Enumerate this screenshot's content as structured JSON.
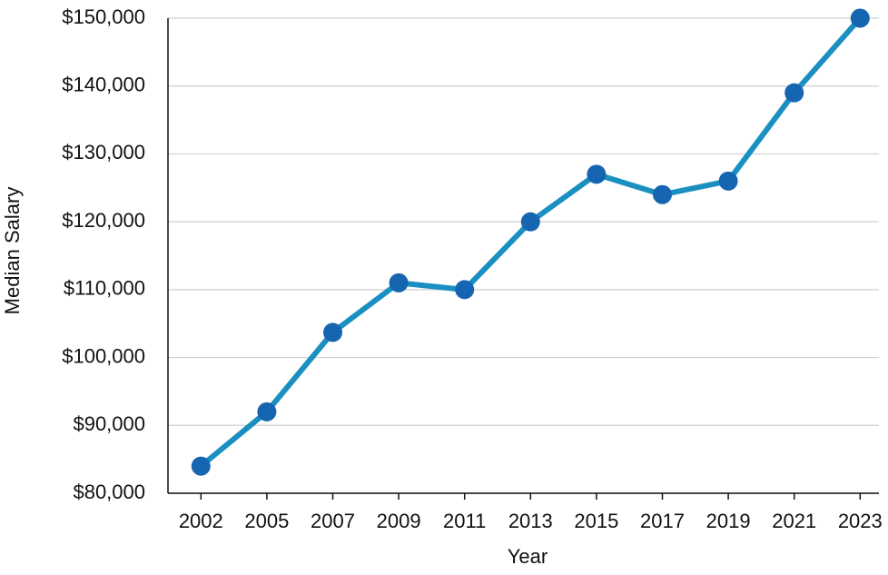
{
  "chart_data": {
    "type": "line",
    "x_label": "Year",
    "y_label": "Median Salary",
    "categories": [
      "2002",
      "2005",
      "2007",
      "2009",
      "2011",
      "2013",
      "2015",
      "2017",
      "2019",
      "2021",
      "2023"
    ],
    "series": [
      {
        "name": "Median Salary",
        "color": "#1a8fc1",
        "marker_color": "#1565b0",
        "values": [
          84000,
          92000,
          103700,
          111000,
          110000,
          120000,
          127000,
          124000,
          126000,
          139000,
          150000
        ]
      }
    ],
    "ylim": [
      80000,
      150000
    ],
    "yticks": [
      {
        "value": 80000,
        "label": "$80,000"
      },
      {
        "value": 90000,
        "label": "$90,000"
      },
      {
        "value": 100000,
        "label": "$100,000"
      },
      {
        "value": 110000,
        "label": "$110,000"
      },
      {
        "value": 120000,
        "label": "$120,000"
      },
      {
        "value": 130000,
        "label": "$130,000"
      },
      {
        "value": 140000,
        "label": "$140,000"
      },
      {
        "value": 150000,
        "label": "$150,000"
      }
    ],
    "grid": true
  }
}
